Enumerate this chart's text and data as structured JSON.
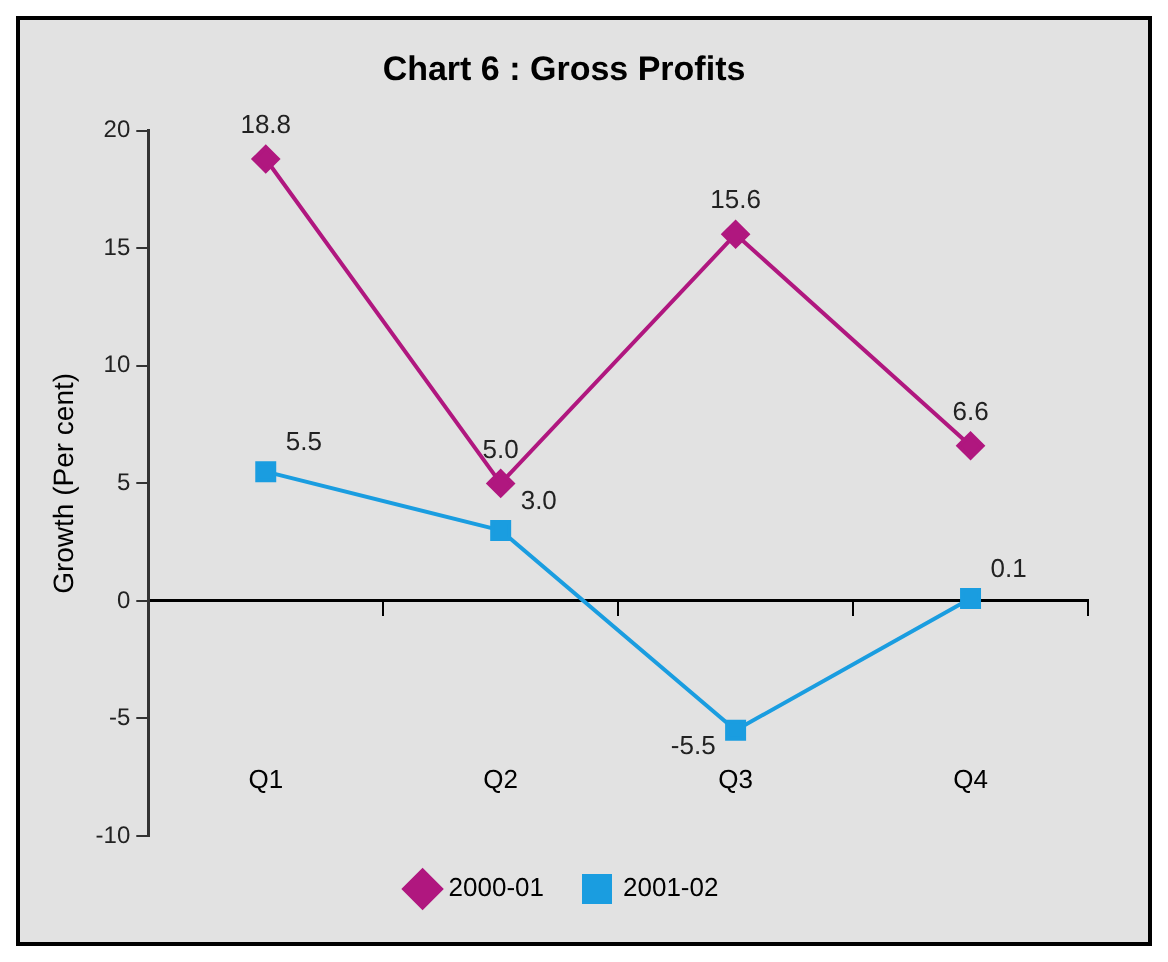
{
  "chart_data": {
    "type": "line",
    "title": "Chart 6 : Gross Profits",
    "ylabel": "Growth (Per cent)",
    "categories": [
      "Q1",
      "Q2",
      "Q3",
      "Q4"
    ],
    "series": [
      {
        "name": "2000-01",
        "color": "#b0177f",
        "values": [
          18.8,
          5.0,
          15.6,
          6.6
        ],
        "value_labels": [
          "18.8",
          "5.0",
          "15.6",
          "6.6"
        ],
        "marker": "diamond"
      },
      {
        "name": "2001-02",
        "color": "#1a9de0",
        "values": [
          5.5,
          3.0,
          -5.5,
          0.1
        ],
        "value_labels": [
          "5.5",
          "3.0",
          "-5.5",
          "0.1"
        ],
        "marker": "square"
      }
    ],
    "ylim": [
      -10,
      20
    ],
    "yticks": [
      -10,
      -5,
      0,
      5,
      10,
      15,
      20
    ],
    "legend": "bottom",
    "line_style": "solid"
  }
}
